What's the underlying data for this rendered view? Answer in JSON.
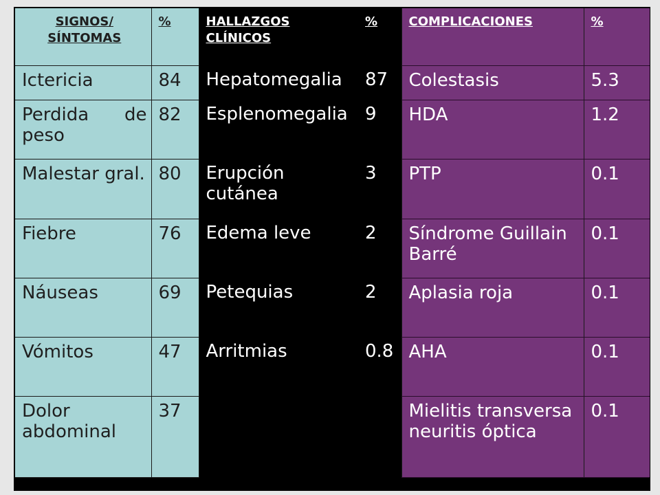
{
  "headers": {
    "signos": "SIGNOS/ SÍNTOMAS",
    "signos_pct": "%",
    "hallazgos": "HALLAZGOS CLÍNICOS",
    "hallazgos_pct": "%",
    "complicaciones": "COMPLICACIONES",
    "complicaciones_pct": "%"
  },
  "rows": [
    {
      "signo": "Ictericia",
      "signo_pct": "84",
      "hallazgo": "Hepatomegalia",
      "hallazgo_pct": "87",
      "complicacion": "Colestasis",
      "complicacion_pct": "5.3"
    },
    {
      "signo": "Perdida de peso",
      "signo_pct": "82",
      "hallazgo": "Esplenomegalia",
      "hallazgo_pct": "9",
      "complicacion": "HDA",
      "complicacion_pct": "1.2"
    },
    {
      "signo": "Malestar gral.",
      "signo_pct": "80",
      "hallazgo": "Erupción cutánea",
      "hallazgo_pct": "3",
      "complicacion": "PTP",
      "complicacion_pct": "0.1"
    },
    {
      "signo": "Fiebre",
      "signo_pct": "76",
      "hallazgo": "Edema leve",
      "hallazgo_pct": "2",
      "complicacion": "Síndrome Guillain Barré",
      "complicacion_pct": "0.1"
    },
    {
      "signo": "Náuseas",
      "signo_pct": "69",
      "hallazgo": "Petequias",
      "hallazgo_pct": "2",
      "complicacion": "Aplasia roja",
      "complicacion_pct": "0.1"
    },
    {
      "signo": "Vómitos",
      "signo_pct": "47",
      "hallazgo": "Arritmias",
      "hallazgo_pct": "0.8",
      "complicacion": "AHA",
      "complicacion_pct": "0.1"
    },
    {
      "signo": "Dolor abdominal",
      "signo_pct": "37",
      "hallazgo": "",
      "hallazgo_pct": "",
      "complicacion": "Mielitis transversa neuritis óptica",
      "complicacion_pct": "0.1"
    }
  ]
}
